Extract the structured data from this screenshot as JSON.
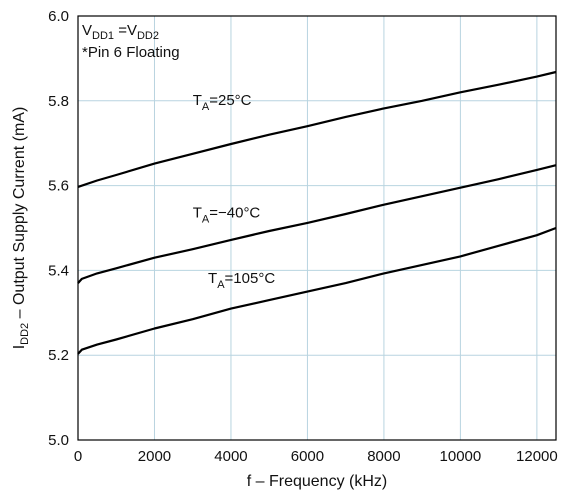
{
  "chart_data": {
    "type": "line",
    "xlabel": "f – Frequency (kHz)",
    "ylabel_main": "I",
    "ylabel_sub": "DD2",
    "ylabel_rest": " – Output Supply Current (mA)",
    "xlim": [
      0,
      12500
    ],
    "ylim": [
      5.0,
      6.0
    ],
    "x_ticks": [
      0,
      2000,
      4000,
      6000,
      8000,
      10000,
      12000
    ],
    "y_ticks": [
      5.0,
      5.2,
      5.4,
      5.6,
      5.8,
      6.0
    ],
    "x_tick_labels": [
      "0",
      "2000",
      "4000",
      "6000",
      "8000",
      "10000",
      "12000"
    ],
    "y_tick_labels": [
      "5.0",
      "5.2",
      "5.4",
      "5.6",
      "5.8",
      "6.0"
    ],
    "grid": true,
    "note_line1": {
      "v1": "V",
      "s1": "DD1",
      "eq": " =V",
      "s2": "DD2"
    },
    "note_line2": "*Pin 6 Floating",
    "series": [
      {
        "name": "TA=25°C",
        "label_main": "T",
        "label_sub": "A",
        "label_rest": "=25°C",
        "label_pos": [
          3000,
          5.79
        ],
        "x": [
          0,
          500,
          1000,
          2000,
          3000,
          4000,
          5000,
          6000,
          7000,
          8000,
          9000,
          10000,
          11000,
          12000,
          12500
        ],
        "y": [
          5.597,
          5.612,
          5.625,
          5.652,
          5.675,
          5.698,
          5.72,
          5.74,
          5.762,
          5.782,
          5.8,
          5.82,
          5.838,
          5.857,
          5.868
        ]
      },
      {
        "name": "TA=−40°C",
        "label_main": "T",
        "label_sub": "A",
        "label_rest": "=−40°C",
        "label_pos": [
          3000,
          5.525
        ],
        "x": [
          0,
          100,
          500,
          1000,
          2000,
          3000,
          4000,
          5000,
          6000,
          7000,
          8000,
          9000,
          10000,
          11000,
          12000,
          12500
        ],
        "y": [
          5.37,
          5.38,
          5.393,
          5.405,
          5.43,
          5.45,
          5.472,
          5.493,
          5.512,
          5.533,
          5.555,
          5.575,
          5.595,
          5.615,
          5.637,
          5.648
        ]
      },
      {
        "name": "TA=105°C",
        "label_main": "T",
        "label_sub": "A",
        "label_rest": "=105°C",
        "label_pos": [
          3400,
          5.37
        ],
        "x": [
          0,
          100,
          500,
          1000,
          2000,
          3000,
          4000,
          5000,
          6000,
          7000,
          8000,
          9000,
          10000,
          11000,
          12000,
          12500
        ],
        "y": [
          5.203,
          5.213,
          5.225,
          5.237,
          5.263,
          5.285,
          5.31,
          5.33,
          5.35,
          5.37,
          5.393,
          5.413,
          5.433,
          5.458,
          5.483,
          5.5
        ]
      }
    ]
  }
}
